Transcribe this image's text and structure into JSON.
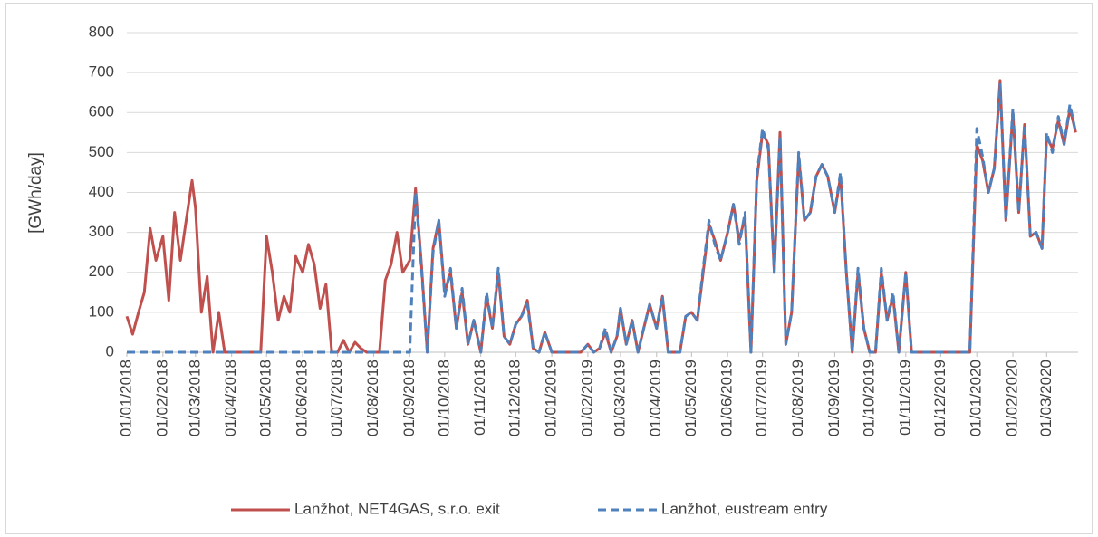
{
  "chart_data": {
    "type": "line",
    "y_label": "[GWh/day]",
    "x": [
      "01/01/2018",
      "06/01/2018",
      "11/01/2018",
      "16/01/2018",
      "21/01/2018",
      "26/01/2018",
      "01/02/2018",
      "06/02/2018",
      "11/02/2018",
      "16/02/2018",
      "21/02/2018",
      "26/02/2018",
      "01/03/2018",
      "06/03/2018",
      "11/03/2018",
      "16/03/2018",
      "21/03/2018",
      "26/03/2018",
      "01/04/2018",
      "06/04/2018",
      "11/04/2018",
      "16/04/2018",
      "21/04/2018",
      "26/04/2018",
      "01/05/2018",
      "06/05/2018",
      "11/05/2018",
      "16/05/2018",
      "21/05/2018",
      "26/05/2018",
      "01/06/2018",
      "06/06/2018",
      "11/06/2018",
      "16/06/2018",
      "21/06/2018",
      "26/06/2018",
      "01/07/2018",
      "06/07/2018",
      "11/07/2018",
      "16/07/2018",
      "21/07/2018",
      "26/07/2018",
      "01/08/2018",
      "06/08/2018",
      "11/08/2018",
      "16/08/2018",
      "21/08/2018",
      "26/08/2018",
      "01/09/2018",
      "06/09/2018",
      "11/09/2018",
      "16/09/2018",
      "21/09/2018",
      "26/09/2018",
      "01/10/2018",
      "06/10/2018",
      "11/10/2018",
      "16/10/2018",
      "21/10/2018",
      "26/10/2018",
      "01/11/2018",
      "06/11/2018",
      "11/11/2018",
      "16/11/2018",
      "21/11/2018",
      "26/11/2018",
      "01/12/2018",
      "06/12/2018",
      "11/12/2018",
      "16/12/2018",
      "21/12/2018",
      "26/12/2018",
      "01/01/2019",
      "06/01/2019",
      "11/01/2019",
      "16/01/2019",
      "21/01/2019",
      "26/01/2019",
      "01/02/2019",
      "06/02/2019",
      "11/02/2019",
      "16/02/2019",
      "21/02/2019",
      "26/02/2019",
      "01/03/2019",
      "06/03/2019",
      "11/03/2019",
      "16/03/2019",
      "21/03/2019",
      "26/03/2019",
      "01/04/2019",
      "06/04/2019",
      "11/04/2019",
      "16/04/2019",
      "21/04/2019",
      "26/04/2019",
      "01/05/2019",
      "06/05/2019",
      "11/05/2019",
      "16/05/2019",
      "21/05/2019",
      "26/05/2019",
      "01/06/2019",
      "06/06/2019",
      "11/06/2019",
      "16/06/2019",
      "21/06/2019",
      "26/06/2019",
      "01/07/2019",
      "06/07/2019",
      "11/07/2019",
      "16/07/2019",
      "21/07/2019",
      "26/07/2019",
      "01/08/2019",
      "06/08/2019",
      "11/08/2019",
      "16/08/2019",
      "21/08/2019",
      "26/08/2019",
      "01/09/2019",
      "06/09/2019",
      "11/09/2019",
      "16/09/2019",
      "21/09/2019",
      "26/09/2019",
      "01/10/2019",
      "06/10/2019",
      "11/10/2019",
      "16/10/2019",
      "21/10/2019",
      "26/10/2019",
      "01/11/2019",
      "06/11/2019",
      "11/11/2019",
      "16/11/2019",
      "21/11/2019",
      "26/11/2019",
      "01/12/2019",
      "06/12/2019",
      "11/12/2019",
      "16/12/2019",
      "21/12/2019",
      "26/12/2019",
      "01/01/2020",
      "06/01/2020",
      "11/01/2020",
      "16/01/2020",
      "21/01/2020",
      "26/01/2020",
      "01/02/2020",
      "06/02/2020",
      "11/02/2020",
      "16/02/2020",
      "21/02/2020",
      "26/02/2020",
      "01/03/2020",
      "06/03/2020",
      "11/03/2020",
      "16/03/2020",
      "21/03/2020",
      "26/03/2020"
    ],
    "series": [
      {
        "name": "Lanžhot, NET4GAS, s.r.o. exit",
        "color": "#c0504d",
        "dash": false,
        "values": [
          90,
          45,
          100,
          150,
          310,
          230,
          290,
          130,
          350,
          230,
          330,
          430,
          360,
          100,
          190,
          0,
          100,
          0,
          0,
          0,
          0,
          0,
          0,
          0,
          290,
          200,
          80,
          140,
          100,
          240,
          200,
          270,
          220,
          110,
          170,
          0,
          0,
          30,
          0,
          25,
          10,
          0,
          0,
          0,
          180,
          220,
          300,
          200,
          230,
          410,
          220,
          0,
          260,
          330,
          150,
          200,
          60,
          150,
          20,
          80,
          0,
          140,
          60,
          200,
          40,
          20,
          70,
          90,
          130,
          10,
          0,
          50,
          0,
          0,
          0,
          0,
          0,
          0,
          20,
          0,
          10,
          50,
          0,
          40,
          110,
          20,
          80,
          0,
          60,
          120,
          60,
          140,
          0,
          0,
          0,
          90,
          100,
          80,
          200,
          320,
          280,
          230,
          300,
          370,
          280,
          340,
          0,
          430,
          550,
          520,
          200,
          550,
          20,
          100,
          490,
          330,
          350,
          440,
          470,
          440,
          350,
          440,
          200,
          0,
          200,
          60,
          0,
          0,
          200,
          80,
          140,
          0,
          200,
          0,
          0,
          0,
          0,
          0,
          0,
          0,
          0,
          0,
          0,
          0,
          520,
          480,
          400,
          460,
          680,
          330,
          600,
          350,
          570,
          290,
          300,
          260,
          540,
          510,
          580,
          520,
          610,
          550
        ]
      },
      {
        "name": "Lanžhot, eustream entry",
        "color": "#4f81bd",
        "dash": true,
        "values": [
          0,
          0,
          0,
          0,
          0,
          0,
          0,
          0,
          0,
          0,
          0,
          0,
          0,
          0,
          0,
          0,
          0,
          0,
          0,
          0,
          0,
          0,
          0,
          0,
          0,
          0,
          0,
          0,
          0,
          0,
          0,
          0,
          0,
          0,
          0,
          0,
          0,
          0,
          0,
          0,
          0,
          0,
          0,
          0,
          0,
          0,
          0,
          0,
          0,
          400,
          210,
          0,
          250,
          330,
          140,
          210,
          60,
          160,
          20,
          80,
          0,
          150,
          60,
          210,
          40,
          20,
          70,
          90,
          120,
          10,
          0,
          50,
          0,
          0,
          0,
          0,
          0,
          0,
          20,
          0,
          10,
          60,
          0,
          40,
          110,
          20,
          80,
          0,
          60,
          120,
          60,
          140,
          0,
          0,
          0,
          90,
          100,
          80,
          210,
          330,
          270,
          230,
          300,
          370,
          270,
          350,
          0,
          440,
          560,
          510,
          200,
          540,
          20,
          100,
          500,
          330,
          350,
          440,
          470,
          440,
          350,
          450,
          200,
          0,
          210,
          60,
          0,
          0,
          210,
          80,
          150,
          0,
          200,
          0,
          0,
          0,
          0,
          0,
          0,
          0,
          0,
          0,
          0,
          0,
          560,
          490,
          400,
          460,
          670,
          330,
          610,
          350,
          570,
          290,
          300,
          260,
          550,
          500,
          590,
          520,
          620,
          550
        ]
      }
    ],
    "xlim": [
      "01/01/2018",
      "28/03/2020"
    ],
    "xticks": [
      "01/01/2018",
      "01/02/2018",
      "01/03/2018",
      "01/04/2018",
      "01/05/2018",
      "01/06/2018",
      "01/07/2018",
      "01/08/2018",
      "01/09/2018",
      "01/10/2018",
      "01/11/2018",
      "01/12/2018",
      "01/01/2019",
      "01/02/2019",
      "01/03/2019",
      "01/04/2019",
      "01/05/2019",
      "01/06/2019",
      "01/07/2019",
      "01/08/2019",
      "01/09/2019",
      "01/10/2019",
      "01/11/2019",
      "01/12/2019",
      "01/01/2020",
      "01/02/2020",
      "01/03/2020"
    ],
    "ylim": [
      0,
      800
    ],
    "yticks": [
      0,
      100,
      200,
      300,
      400,
      500,
      600,
      700,
      800
    ],
    "grid": true,
    "legend": "bottom"
  }
}
